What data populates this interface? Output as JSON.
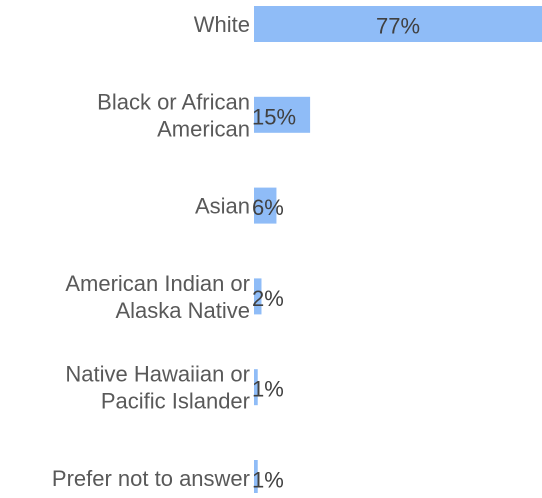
{
  "chart_data": {
    "type": "bar",
    "orientation": "horizontal",
    "title": "",
    "xlabel": "",
    "ylabel": "",
    "categories": [
      [
        "White"
      ],
      [
        "Black or African",
        "American"
      ],
      [
        "Asian"
      ],
      [
        "American Indian or",
        "Alaska Native"
      ],
      [
        "Native Hawaiian or",
        "Pacific Islander"
      ],
      [
        "Prefer not to answer"
      ]
    ],
    "values": [
      77,
      15,
      6,
      2,
      1,
      1
    ],
    "data_labels": [
      "77%",
      "15%",
      "6%",
      "2%",
      "1%",
      "1%"
    ],
    "xlim": [
      0,
      77
    ],
    "grid": false,
    "legend": "none",
    "bar_color": "#8fbcf7",
    "label_color": "#595959",
    "value_label_color": "#404040"
  }
}
